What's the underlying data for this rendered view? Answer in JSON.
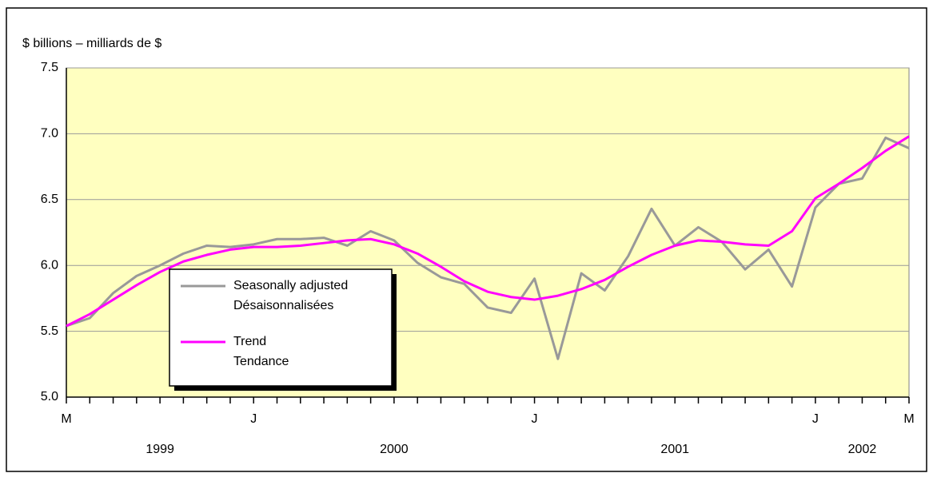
{
  "chart_data": {
    "type": "line",
    "y_label": "$ billions – milliards de $",
    "categories": [
      "M",
      null,
      null,
      null,
      null,
      null,
      null,
      null,
      "J",
      null,
      null,
      null,
      null,
      null,
      null,
      null,
      null,
      null,
      null,
      null,
      "J",
      null,
      null,
      null,
      null,
      null,
      null,
      null,
      null,
      null,
      null,
      null,
      "J",
      null,
      null,
      null,
      "M"
    ],
    "year_labels": [
      "1999",
      "2000",
      "2001",
      "2002"
    ],
    "series": [
      {
        "name": "Seasonally adjusted",
        "name_fr": "Désaisonnalisées",
        "color": "#999999",
        "values": [
          5.54,
          5.6,
          5.79,
          5.92,
          6.0,
          6.09,
          6.15,
          6.14,
          6.16,
          6.2,
          6.2,
          6.21,
          6.15,
          6.26,
          6.19,
          6.02,
          5.91,
          5.86,
          5.68,
          5.64,
          5.9,
          5.29,
          5.94,
          5.81,
          6.07,
          6.43,
          6.15,
          6.29,
          6.18,
          5.97,
          6.12,
          5.84,
          6.44,
          6.62,
          6.66,
          6.97,
          6.89
        ]
      },
      {
        "name": "Trend",
        "name_fr": "Tendance",
        "color": "#ff00ff",
        "values": [
          5.54,
          5.63,
          5.74,
          5.85,
          5.95,
          6.03,
          6.08,
          6.12,
          6.14,
          6.14,
          6.15,
          6.17,
          6.19,
          6.2,
          6.16,
          6.09,
          5.99,
          5.88,
          5.8,
          5.76,
          5.74,
          5.77,
          5.82,
          5.89,
          5.99,
          6.08,
          6.15,
          6.19,
          6.18,
          6.16,
          6.15,
          6.26,
          6.51,
          6.62,
          6.74,
          6.87,
          6.98
        ]
      }
    ],
    "ylim": [
      5.0,
      7.5
    ],
    "yticks": [
      {
        "value": 5.0,
        "label": "5.0"
      },
      {
        "value": 5.5,
        "label": "5.5"
      },
      {
        "value": 6.0,
        "label": "6.0"
      },
      {
        "value": 6.5,
        "label": "6.5"
      },
      {
        "value": 7.0,
        "label": "7.0"
      },
      {
        "value": 7.5,
        "label": "7.5"
      }
    ],
    "grid": true,
    "plot_background": "#ffffc0"
  }
}
